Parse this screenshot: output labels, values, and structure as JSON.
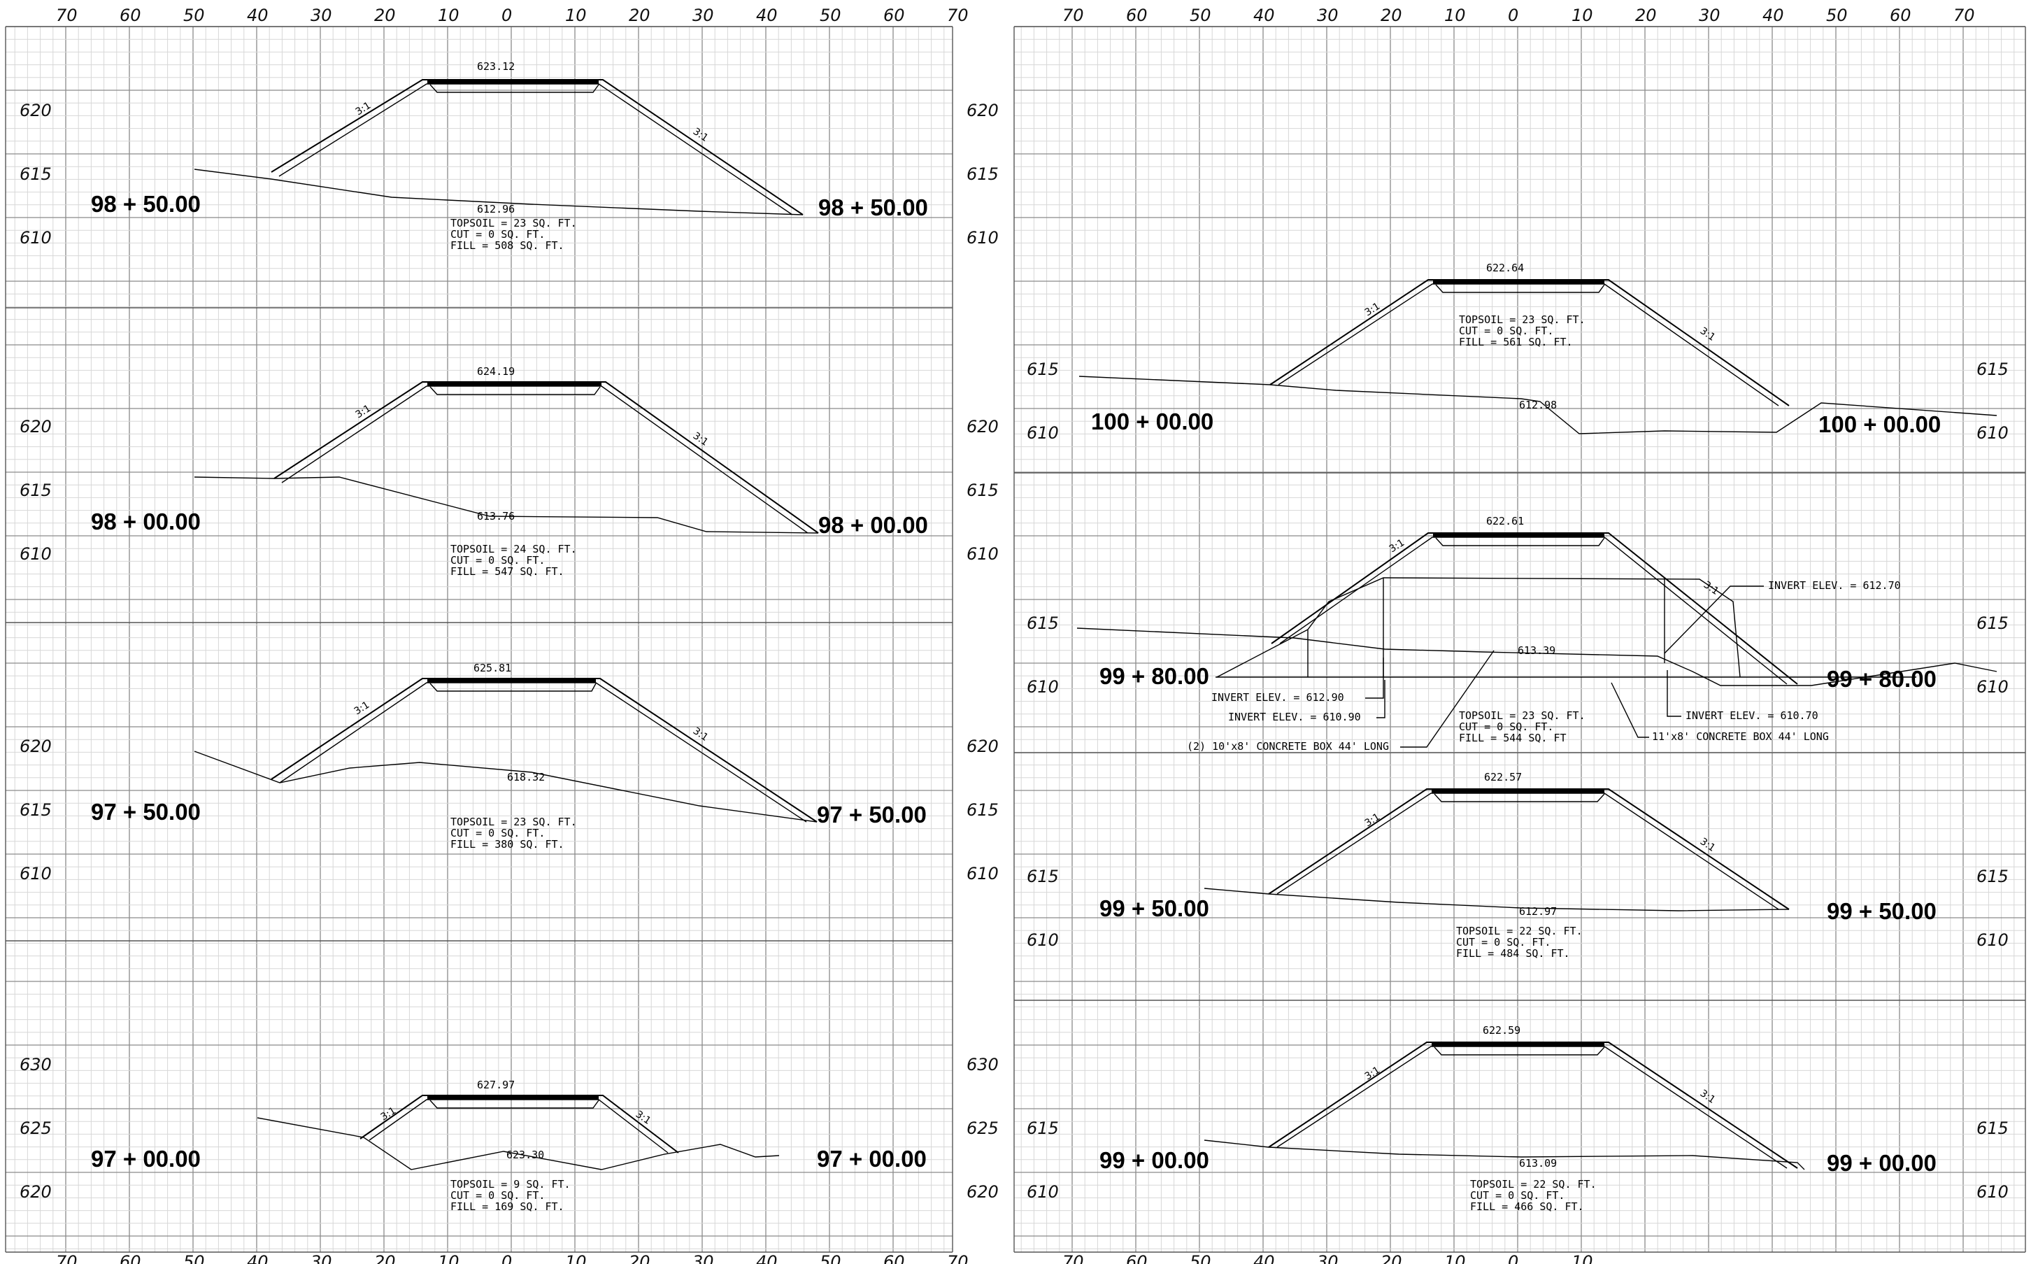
{
  "axis": {
    "offsets_top_left": [
      "70",
      "60",
      "50",
      "40",
      "30",
      "20",
      "10",
      "0",
      "10",
      "20",
      "30",
      "40",
      "50",
      "60",
      "70"
    ],
    "offsets_top_right": [
      "70",
      "60",
      "50",
      "40",
      "30",
      "20",
      "10",
      "0",
      "10",
      "20",
      "30",
      "40",
      "50",
      "60",
      "70"
    ],
    "offsets_bottom_left": [
      "70",
      "60",
      "50",
      "40",
      "30",
      "20",
      "10",
      "0",
      "10",
      "20",
      "30",
      "40",
      "50",
      "60",
      "70"
    ],
    "offsets_bottom_right": [
      "70",
      "60",
      "50",
      "40",
      "30",
      "20",
      "10",
      "0",
      "10"
    ]
  },
  "slope_label": "3:1",
  "sections": [
    {
      "station": "98 + 50.00",
      "elevs": [
        "620",
        "615",
        "610"
      ],
      "grade": "623.12",
      "ground": "612.96",
      "topsoil": "TOPSOIL = 23 SQ. FT.",
      "cut": "CUT = 0 SQ. FT.",
      "fill": "FILL = 508 SQ. FT."
    },
    {
      "station": "98 + 00.00",
      "elevs": [
        "620",
        "615",
        "610"
      ],
      "grade": "624.19",
      "ground": "613.76",
      "topsoil": "TOPSOIL = 24 SQ. FT.",
      "cut": "CUT = 0 SQ. FT.",
      "fill": "FILL = 547 SQ. FT."
    },
    {
      "station": "97 + 50.00",
      "elevs": [
        "620",
        "615",
        "610"
      ],
      "grade": "625.81",
      "ground": "618.32",
      "topsoil": "TOPSOIL = 23 SQ. FT.",
      "cut": "CUT = 0 SQ. FT.",
      "fill": "FILL = 380 SQ. FT."
    },
    {
      "station": "97 + 00.00",
      "elevs": [
        "630",
        "625",
        "620"
      ],
      "grade": "627.97",
      "ground": "623.30",
      "topsoil": "TOPSOIL = 9 SQ. FT.",
      "cut": "CUT = 0 SQ. FT.",
      "fill": "FILL = 169 SQ. FT."
    },
    {
      "station": "100 + 00.00",
      "elevs": [
        "615",
        "610"
      ],
      "grade": "622.64",
      "ground": "612.98",
      "topsoil": "TOPSOIL = 23 SQ. FT.",
      "cut": "CUT = 0 SQ. FT.",
      "fill": "FILL = 561 SQ. FT."
    },
    {
      "station": "99 + 80.00",
      "elevs": [
        "615",
        "610"
      ],
      "grade": "622.61",
      "ground": "613.39",
      "topsoil": "TOPSOIL = 23 SQ. FT.",
      "cut": "CUT = 0 SQ. FT.",
      "fill": "FILL = 544 SQ. FT"
    },
    {
      "station": "99 + 50.00",
      "elevs": [
        "615",
        "610"
      ],
      "grade": "622.57",
      "ground": "612.97",
      "topsoil": "TOPSOIL = 22 SQ. FT.",
      "cut": "CUT = 0 SQ. FT.",
      "fill": "FILL = 484 SQ. FT."
    },
    {
      "station": "99 + 00.00",
      "elevs": [
        "615",
        "610"
      ],
      "grade": "622.59",
      "ground": "613.09",
      "topsoil": "TOPSOIL = 22 SQ. FT.",
      "cut": "CUT = 0 SQ. FT.",
      "fill": "FILL = 466 SQ. FT."
    }
  ],
  "left_column_elev_labels_between": [
    "620",
    "615",
    "610"
  ],
  "culvert": {
    "invert_left_upper": "INVERT ELEV. = 612.90",
    "invert_left_lower": "INVERT ELEV. = 610.90",
    "box_left": "(2) 10'x8' CONCRETE BOX 44' LONG",
    "invert_right_upper": "INVERT ELEV. = 612.70",
    "invert_right_lower": "INVERT ELEV. = 610.70",
    "box_right": "11'x8' CONCRETE BOX 44' LONG"
  }
}
